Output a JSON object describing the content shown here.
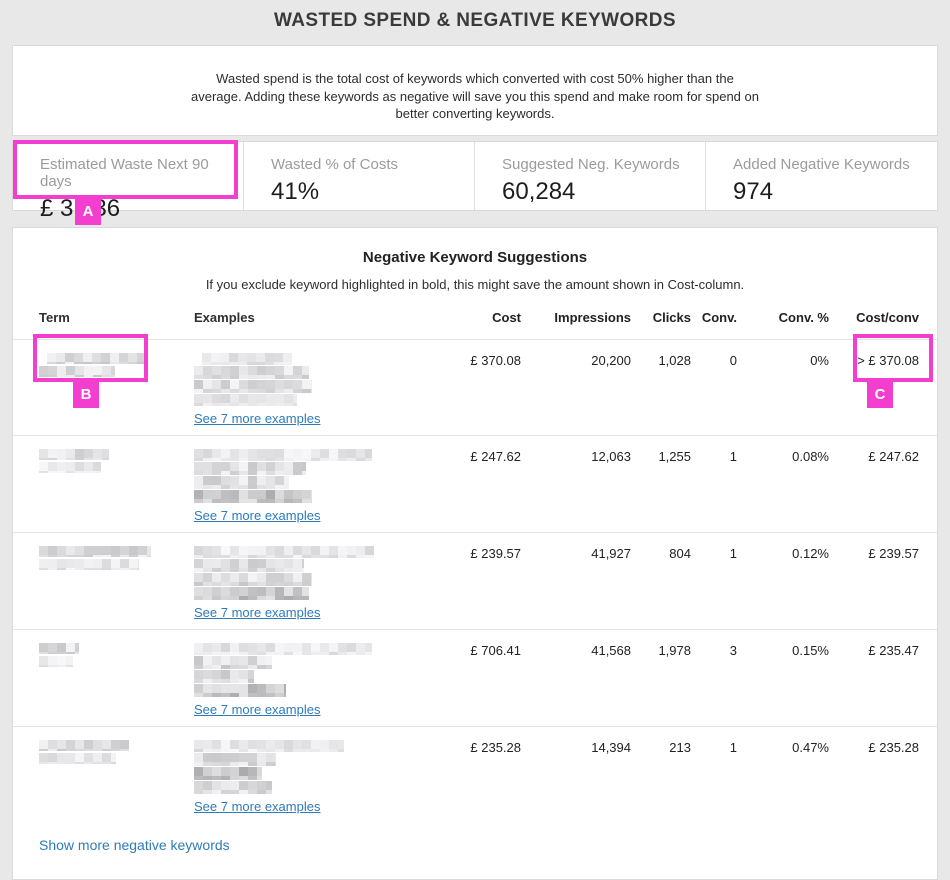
{
  "page_title": "WASTED SPEND & NEGATIVE KEYWORDS",
  "description": "Wasted spend is the total cost of keywords which converted with cost 50% higher than the average. Adding these keywords as negative will save you this spend and make room for spend on better converting keywords.",
  "stats": [
    {
      "label": "Estimated Waste Next 90 days",
      "value": "£ 3,436"
    },
    {
      "label": "Wasted % of Costs",
      "value": "41%"
    },
    {
      "label": "Suggested Neg. Keywords",
      "value": "60,284"
    },
    {
      "label": "Added Negative Keywords",
      "value": "974"
    }
  ],
  "suggestions": {
    "title": "Negative Keyword Suggestions",
    "subtitle": "If you exclude keyword highlighted in bold, this might save the amount shown in Cost-column.",
    "columns": [
      "Term",
      "Examples",
      "Cost",
      "Impressions",
      "Clicks",
      "Conv.",
      "Conv. %",
      "Cost/conv"
    ],
    "rows": [
      {
        "cost": "£ 370.08",
        "impressions": "20,200",
        "clicks": "1,028",
        "conv": "0",
        "conv_pct": "0%",
        "cost_per_conv": "> £ 370.08",
        "examples_link": "See 7 more examples"
      },
      {
        "cost": "£ 247.62",
        "impressions": "12,063",
        "clicks": "1,255",
        "conv": "1",
        "conv_pct": "0.08%",
        "cost_per_conv": "£ 247.62",
        "examples_link": "See 7 more examples"
      },
      {
        "cost": "£ 239.57",
        "impressions": "41,927",
        "clicks": "804",
        "conv": "1",
        "conv_pct": "0.12%",
        "cost_per_conv": "£ 239.57",
        "examples_link": "See 7 more examples"
      },
      {
        "cost": "£ 706.41",
        "impressions": "41,568",
        "clicks": "1,978",
        "conv": "3",
        "conv_pct": "0.15%",
        "cost_per_conv": "£ 235.47",
        "examples_link": "See 7 more examples"
      },
      {
        "cost": "£ 235.28",
        "impressions": "14,394",
        "clicks": "213",
        "conv": "1",
        "conv_pct": "0.47%",
        "cost_per_conv": "£ 235.28",
        "examples_link": "See 7 more examples"
      }
    ],
    "show_more_label": "Show more negative keywords"
  },
  "annotations": [
    {
      "label": "A"
    },
    {
      "label": "B"
    },
    {
      "label": "C"
    }
  ],
  "colors": {
    "annotation": "#f43ed0",
    "link": "#2e7bba"
  }
}
